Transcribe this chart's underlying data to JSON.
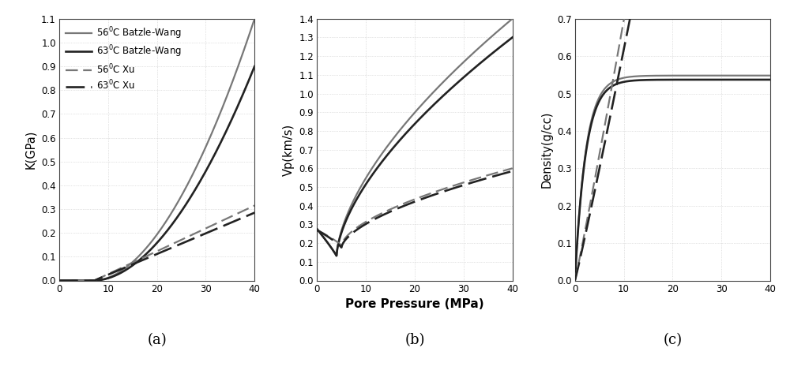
{
  "fig_width": 10.0,
  "fig_height": 4.74,
  "dpi": 100,
  "bg_color": "#ffffff",
  "grid_color": "#c8c8c8",
  "panel_labels": [
    "(a)",
    "(b)",
    "(c)"
  ],
  "legend_labels": [
    "56$^0$C Batzle-Wang",
    "63$^0$C Batzle-Wang",
    "56$^0$C Xu",
    "63$^0$C Xu"
  ],
  "x_label": "Pore Pressure (MPa)",
  "panels": [
    {
      "ylabel": "K(GPa)",
      "xlim": [
        0,
        40
      ],
      "ylim": [
        0,
        1.1
      ],
      "yticks": [
        0.0,
        0.1,
        0.2,
        0.3,
        0.4,
        0.5,
        0.6,
        0.7,
        0.8,
        0.9,
        1.0,
        1.1
      ],
      "xticks": [
        0,
        10,
        20,
        30,
        40
      ]
    },
    {
      "ylabel": "Vp(km/s)",
      "xlim": [
        0,
        40
      ],
      "ylim": [
        0.0,
        1.4
      ],
      "yticks": [
        0.0,
        0.1,
        0.2,
        0.3,
        0.4,
        0.5,
        0.6,
        0.7,
        0.8,
        0.9,
        1.0,
        1.1,
        1.2,
        1.3,
        1.4
      ],
      "xticks": [
        0,
        10,
        20,
        30,
        40
      ]
    },
    {
      "ylabel": "Density(g/cc)",
      "xlim": [
        0,
        40
      ],
      "ylim": [
        0.0,
        0.7
      ],
      "yticks": [
        0.0,
        0.1,
        0.2,
        0.3,
        0.4,
        0.5,
        0.6,
        0.7
      ],
      "xticks": [
        0,
        10,
        20,
        30,
        40
      ]
    }
  ],
  "line_styles": {
    "bw_56_color": "#777777",
    "bw_63_color": "#222222",
    "xu_56_color": "#777777",
    "xu_63_color": "#222222",
    "bw_lw": 1.6,
    "xu_lw": 1.6
  }
}
